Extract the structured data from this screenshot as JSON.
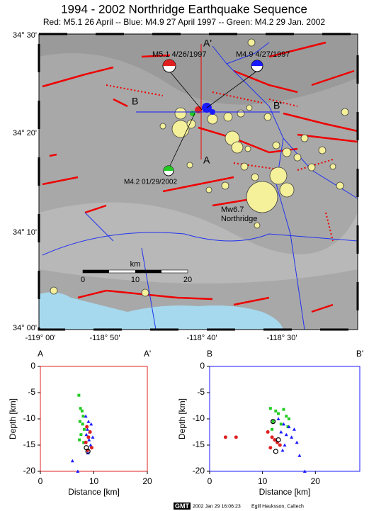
{
  "header": {
    "title": "1994 - 2002 Northridge Earthquake Sequence",
    "subtitle": "Red: M5.1 26 April -- Blue: M4.9 27 April 1997 -- Green: M4.2 29 Jan. 2002"
  },
  "map": {
    "lon_labels": [
      "-119° 00'",
      "-118° 50'",
      "-118° 40'",
      "-118° 30'"
    ],
    "lat_labels": [
      "34° 30'",
      "34° 20'",
      "34° 10'",
      "34° 00'"
    ],
    "a": "A",
    "a_prime": "A'",
    "b": "B",
    "b_prime": "B'",
    "red_event": "M5.1 4/26/1997",
    "blue_event": "M4.9 4/27/1997",
    "green_event": "M4.2 01/29/2002",
    "mainshock": "Mw6.7",
    "mainshock_place": "Northridge",
    "scale_unit": "km",
    "scale_ticks": [
      "0",
      "10",
      "20"
    ]
  },
  "chart_data": [
    {
      "type": "scatter",
      "corner_left": "A",
      "corner_right": "A'",
      "xlabel": "Distance [km]",
      "ylabel": "Depth [km]",
      "xlim": [
        0,
        20
      ],
      "ylim": [
        -20,
        0
      ],
      "xticks": [
        0,
        10,
        20
      ],
      "yticks": [
        0,
        -5,
        -10,
        -15,
        -20
      ],
      "frame_color": "#e02020",
      "series": [
        {
          "color": "#22cc22",
          "marker": "square",
          "x": [
            7.2,
            7.5,
            7.8,
            8.0,
            7.4,
            7.9,
            8.2,
            7.6,
            7.3,
            8.1
          ],
          "values": [
            -5.5,
            -8.0,
            -8.5,
            -9.5,
            -10.5,
            -11.0,
            -12.0,
            -13.0,
            -14.0,
            -14.5
          ]
        },
        {
          "color": "#1a1aff",
          "marker": "triangle",
          "x": [
            8.5,
            9.0,
            9.5,
            8.8,
            9.2,
            8.6,
            9.8,
            9.1,
            8.4,
            9.4,
            6.0,
            7.0,
            8.9
          ],
          "values": [
            -9.5,
            -10.5,
            -11.0,
            -12.0,
            -12.5,
            -13.0,
            -13.5,
            -14.0,
            -14.5,
            -15.0,
            -18.0,
            -20.0,
            -16.5
          ]
        },
        {
          "color": "#e02020",
          "marker": "circle",
          "x": [
            8.7,
            9.3,
            9.0,
            8.5,
            9.6,
            8.8
          ],
          "values": [
            -11.5,
            -12.5,
            -13.5,
            -14.5,
            -15.5,
            -16.0
          ]
        },
        {
          "color": "#000000",
          "marker": "ring",
          "x": [
            8.6,
            8.9
          ],
          "values": [
            -15.5,
            -16.2
          ]
        }
      ]
    },
    {
      "type": "scatter",
      "corner_left": "B",
      "corner_right": "B'",
      "xlabel": "Distance [km]",
      "ylabel": "Depth [km]",
      "xlim": [
        0,
        28.4
      ],
      "ylim": [
        -20,
        0
      ],
      "xticks": [
        0,
        10,
        20
      ],
      "yticks": [
        0,
        -5,
        -10,
        -15,
        -20
      ],
      "frame_color": "#1a1aff",
      "series": [
        {
          "color": "#22cc22",
          "marker": "square",
          "x": [
            11.5,
            12.5,
            13.0,
            14.0,
            14.5,
            15.0,
            12.0,
            13.5,
            11.8,
            14.8
          ],
          "values": [
            -8.0,
            -8.5,
            -9.0,
            -8.2,
            -9.5,
            -10.0,
            -10.5,
            -11.0,
            -12.0,
            -11.5
          ]
        },
        {
          "color": "#1a1aff",
          "marker": "triangle",
          "x": [
            13.0,
            14.0,
            15.0,
            16.0,
            13.5,
            14.5,
            15.5,
            12.5,
            16.5,
            14.2,
            13.8,
            18.0,
            17.0
          ],
          "values": [
            -10.0,
            -11.0,
            -11.5,
            -12.0,
            -12.5,
            -13.0,
            -13.5,
            -14.0,
            -14.5,
            -15.0,
            -16.0,
            -20.0,
            -17.0
          ]
        },
        {
          "color": "#e02020",
          "marker": "circle",
          "x": [
            3.0,
            5.0,
            11.0,
            11.8,
            12.3,
            12.8,
            13.3,
            11.5
          ],
          "values": [
            -13.5,
            -13.5,
            -12.5,
            -13.5,
            -14.0,
            -14.5,
            -15.0,
            -15.5
          ]
        },
        {
          "color": "#000000",
          "marker": "ring",
          "x": [
            12.0,
            13.0,
            12.5
          ],
          "values": [
            -10.5,
            -14.0,
            -16.2
          ]
        }
      ]
    }
  ],
  "footer": {
    "badge": "GMT",
    "date": "2002 Jan 29 16:06:23",
    "author": "Egill Hauksson, Caltech"
  }
}
